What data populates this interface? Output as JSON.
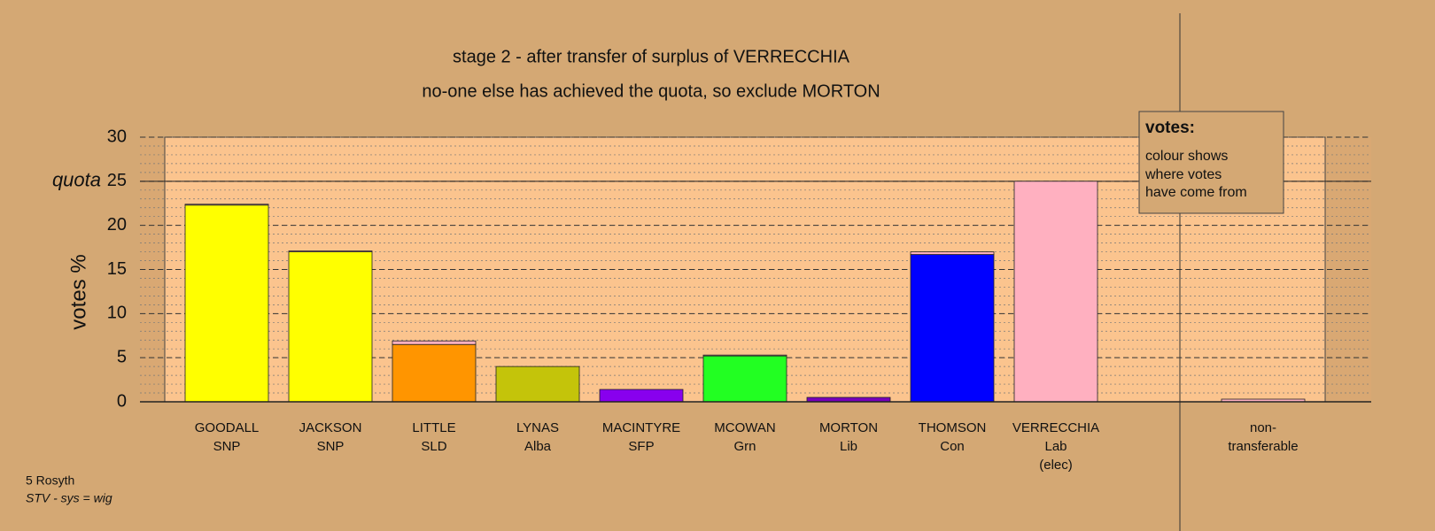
{
  "chart_data": {
    "type": "bar",
    "stacked": true,
    "title": "stage 2 - after transfer of surplus of VERRECCHIA",
    "subtitle": "no-one else has achieved the quota, so exclude MORTON",
    "y_label": "votes %",
    "categories": [
      [
        "GOODALL",
        "SNP"
      ],
      [
        "JACKSON",
        "SNP"
      ],
      [
        "LITTLE",
        "SLD"
      ],
      [
        "LYNAS",
        "Alba"
      ],
      [
        "MACINTYRE",
        "SFP"
      ],
      [
        "MCOWAN",
        "Grn"
      ],
      [
        "MORTON",
        "Lib"
      ],
      [
        "THOMSON",
        "Con"
      ],
      [
        "VERRECCHIA",
        "Lab",
        "(elec)"
      ],
      [
        "non-",
        "transferable"
      ]
    ],
    "series": [
      {
        "colors": [
          "#ffff00",
          "#ffff00",
          "#ff9500",
          "#c4c40a",
          "#8800ee",
          "#22ff22",
          "#7700bb",
          "#0000ff",
          "#ffb0c0",
          "#ffb0c0"
        ],
        "values": [
          22.3,
          17.0,
          6.5,
          4.0,
          1.4,
          5.2,
          0.5,
          16.7,
          25.0,
          0
        ]
      },
      {
        "color": "#ffb0c0",
        "values": [
          0.1,
          0.1,
          0.4,
          0,
          0,
          0.1,
          0,
          0.3,
          0,
          0.3
        ]
      }
    ],
    "ylim": [
      0,
      30
    ],
    "yticks": [
      0,
      5,
      10,
      15,
      20,
      25,
      30
    ],
    "minor_grid_step": 1,
    "grid": true,
    "quota": 25,
    "quota_label": "quota",
    "note": {
      "title": "votes:",
      "lines": [
        "colour shows",
        "where votes",
        "have come from"
      ]
    },
    "footer": [
      "5 Rosyth",
      "STV - sys = wig"
    ]
  }
}
